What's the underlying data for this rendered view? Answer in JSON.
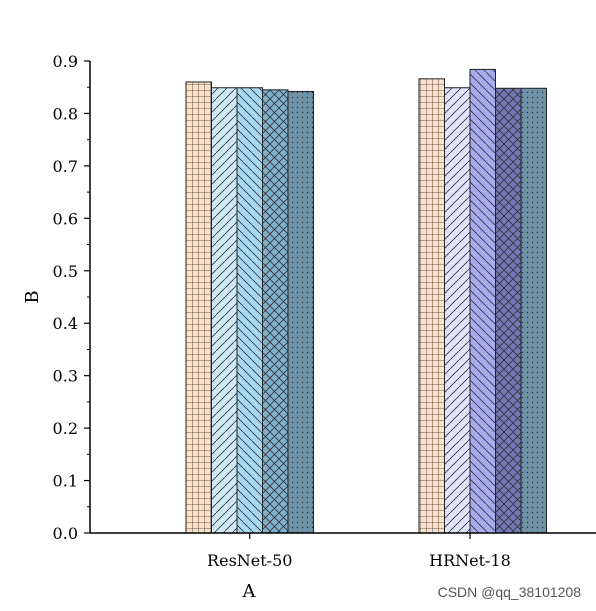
{
  "chart_data": {
    "type": "bar",
    "categories": [
      "ResNet-50",
      "HRNet-18"
    ],
    "series": [
      {
        "values": [
          0.86,
          0.866
        ],
        "color": "#fde0c8",
        "pattern": "grid"
      },
      {
        "values": [
          0.849,
          0.849
        ],
        "color": "#cfe9f7",
        "pattern": "diag-right"
      },
      {
        "values": [
          0.849,
          0.884
        ],
        "color": "#a6d8f3",
        "pattern": "diag-left"
      },
      {
        "values": [
          0.845,
          0.848
        ],
        "color": "#7fb0cf",
        "pattern": "crosshatch"
      },
      {
        "values": [
          0.842,
          0.848
        ],
        "color": "#6e93a8",
        "pattern": "dots"
      }
    ],
    "series_colors_group2": [
      "#fde0c8",
      "#e0e3fa",
      "#a7acf1",
      "#7178b6"
    ],
    "xlabel": "A",
    "ylabel": "B",
    "ylim": [
      0,
      0.9
    ],
    "yticks": [
      "0.0",
      "0.1",
      "0.2",
      "0.3",
      "0.4",
      "0.5",
      "0.6",
      "0.7",
      "0.8",
      "0.9"
    ],
    "grid": false,
    "legend": "none"
  },
  "watermark": "CSDN @qq_38101208"
}
